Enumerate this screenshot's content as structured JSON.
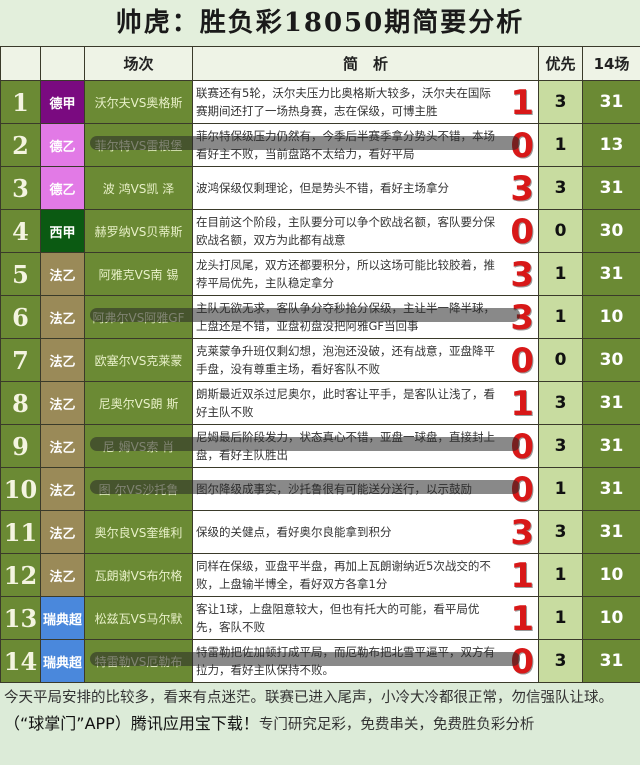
{
  "title": "帅虎：胜负彩18050期简要分析",
  "headers": {
    "num": "",
    "league": "",
    "match": "场次",
    "analysis": "简　析",
    "priority": "优先",
    "total": "14场"
  },
  "rows": [
    {
      "num": "1",
      "league": "德甲",
      "league_color": "#7a0a80",
      "match": "沃尔夫VS奥格斯",
      "analysis": "联赛还有5轮，沃尔夫压力比奥格斯大较多，沃尔夫在国际赛期间还打了一场热身赛，志在保级，可博主胜",
      "pick": "1",
      "priority": "3",
      "count": "31",
      "overlay": false
    },
    {
      "num": "2",
      "league": "德乙",
      "league_color": "#e27ae6",
      "match": "菲尔特VS雷根堡",
      "analysis": "菲尔特保级压力仍然有，今季后半赛季拿分势头不错，本场看好主不败，当前盘路不太给力，看好平局",
      "pick": "0",
      "priority": "1",
      "count": "13",
      "overlay": true
    },
    {
      "num": "3",
      "league": "德乙",
      "league_color": "#e27ae6",
      "match": "波 鸿VS凯 泽",
      "analysis": "波鸿保级仅剩理论，但是势头不错，看好主场拿分",
      "pick": "3",
      "priority": "3",
      "count": "31",
      "overlay": false
    },
    {
      "num": "4",
      "league": "西甲",
      "league_color": "#0b5a12",
      "match": "赫罗纳VS贝蒂斯",
      "analysis": "在目前这个阶段，主队要分可以争个欧战名额，客队要分保欧战名额，双方为此都有战意",
      "pick": "0",
      "priority": "0",
      "count": "30",
      "overlay": false
    },
    {
      "num": "5",
      "league": "法乙",
      "league_color": "#9a8a58",
      "match": "阿雅克VS南 锡",
      "analysis": "龙头打凤尾，双方还都要积分，所以这场可能比较胶着，推荐平局优先，主队稳定拿分",
      "pick": "3",
      "priority": "1",
      "count": "31",
      "overlay": false
    },
    {
      "num": "6",
      "league": "法乙",
      "league_color": "#9a8a58",
      "match": "阿弗尔VS阿雅GF",
      "analysis": "主队无欲无求，客队争分夺秒抢分保级，主让半一降半球，上盘还是不错，亚盘初盘没把阿雅GF当回事",
      "pick": "3",
      "priority": "1",
      "count": "10",
      "overlay": true
    },
    {
      "num": "7",
      "league": "法乙",
      "league_color": "#9a8a58",
      "match": "欧塞尔VS克莱蒙",
      "analysis": "克莱蒙争升班仅剩幻想，泡泡还没破，还有战意，亚盘降平手盘，没有尊重主场，看好客队不败",
      "pick": "0",
      "priority": "0",
      "count": "30",
      "overlay": false
    },
    {
      "num": "8",
      "league": "法乙",
      "league_color": "#9a8a58",
      "match": "尼奥尔VS朗 斯",
      "analysis": "朗斯最近双杀过尼奥尔，此时客让平手，是客队让浅了，看好主队不败",
      "pick": "1",
      "priority": "3",
      "count": "31",
      "overlay": false
    },
    {
      "num": "9",
      "league": "法乙",
      "league_color": "#9a8a58",
      "match": "尼 姆VS索 肖",
      "analysis": "尼姆最后阶段发力，状态真心不错，亚盘一球盘，直接封上盘，看好主队胜出",
      "pick": "0",
      "priority": "3",
      "count": "31",
      "overlay": true
    },
    {
      "num": "10",
      "league": "法乙",
      "league_color": "#9a8a58",
      "match": "图 尔VS沙托鲁",
      "analysis": "图尔降级成事实，沙托鲁很有可能送分送行，以示鼓励",
      "pick": "0",
      "priority": "1",
      "count": "31",
      "overlay": true
    },
    {
      "num": "11",
      "league": "法乙",
      "league_color": "#9a8a58",
      "match": "奥尔良VS奎维利",
      "analysis": "保级的关健点，看好奥尔良能拿到积分",
      "pick": "3",
      "priority": "3",
      "count": "31",
      "overlay": false
    },
    {
      "num": "12",
      "league": "法乙",
      "league_color": "#9a8a58",
      "match": "瓦朗谢VS布尔格",
      "analysis": "同样在保级，亚盘平半盘，再加上瓦朗谢纳近5次战交的不败，上盘输半博全，看好双方各拿1分",
      "pick": "1",
      "priority": "1",
      "count": "10",
      "overlay": false
    },
    {
      "num": "13",
      "league": "瑞典超",
      "league_color": "#4a88dc",
      "match": "松兹瓦VS马尔默",
      "analysis": "客让1球，上盘阻意较大，但也有托大的可能，看平局优先，客队不败",
      "pick": "1",
      "priority": "1",
      "count": "10",
      "overlay": false
    },
    {
      "num": "14",
      "league": "瑞典超",
      "league_color": "#4a88dc",
      "match": "特雷勒VS厄勒布",
      "analysis": "特雷勒把佐加顿打成平局，而厄勒布把北雪平逼平，双方有拉力，看好主队保持不败。",
      "pick": "0",
      "priority": "3",
      "count": "31",
      "overlay": true
    }
  ],
  "footer": {
    "text1": "今天平局安排的比较多，看来有点迷茫。联赛已进入尾声，小冷大冷都很正常，勿信强队让球。",
    "text2": "（“球掌门”APP）腾讯应用宝下载！",
    "text3": "专门研究足彩，免费串关，免费胜负彩分析"
  }
}
